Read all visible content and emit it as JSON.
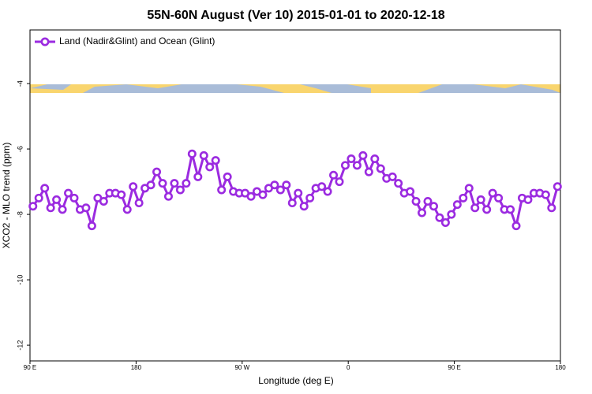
{
  "chart_data": {
    "type": "line",
    "title": "55N-60N August (Ver 10)   2015-01-01 to 2020-12-18",
    "xlabel": "Longitude (deg E)",
    "ylabel": "XCO2 - MLO trend (ppm)",
    "x": [
      92.5,
      97.5,
      102.5,
      107.5,
      112.5,
      117.5,
      122.5,
      127.5,
      132.5,
      137.5,
      142.5,
      147.5,
      152.5,
      157.5,
      162.5,
      167.5,
      172.5,
      177.5,
      182.5,
      187.5,
      192.5,
      197.5,
      202.5,
      207.5,
      212.5,
      217.5,
      222.5,
      227.5,
      232.5,
      237.5,
      242.5,
      247.5,
      252.5,
      257.5,
      262.5,
      267.5,
      272.5,
      277.5,
      282.5,
      287.5,
      292.5,
      297.5,
      302.5,
      307.5,
      312.5,
      317.5,
      322.5,
      327.5,
      332.5,
      337.5,
      342.5,
      347.5,
      352.5,
      357.5,
      362.5,
      367.5,
      372.5,
      377.5,
      382.5,
      387.5,
      392.5,
      397.5,
      402.5,
      407.5,
      412.5,
      417.5,
      422.5,
      427.5,
      432.5,
      437.5,
      442.5,
      447.5,
      452.5,
      457.5,
      462.5,
      467.5,
      472.5,
      477.5,
      482.5,
      487.5,
      492.5,
      497.5,
      502.5,
      507.5,
      512.5,
      517.5,
      522.5,
      527.5,
      532.5,
      537.5
    ],
    "series": [
      {
        "name": "Land (Nadir&Glint) and Ocean (Glint)",
        "color": "#9b2be0",
        "values": [
          -7.75,
          -7.5,
          -7.2,
          -7.8,
          -7.55,
          -7.85,
          -7.35,
          -7.5,
          -7.85,
          -7.8,
          -8.35,
          -7.5,
          -7.6,
          -7.35,
          -7.35,
          -7.4,
          -7.85,
          -7.15,
          -7.65,
          -7.2,
          -7.1,
          -6.7,
          -7.05,
          -7.45,
          -7.05,
          -7.25,
          -7.05,
          -6.15,
          -6.85,
          -6.2,
          -6.55,
          -6.35,
          -7.25,
          -6.85,
          -7.3,
          -7.35,
          -7.35,
          -7.45,
          -7.3,
          -7.4,
          -7.2,
          -7.1,
          -7.25,
          -7.1,
          -7.65,
          -7.35,
          -7.75,
          -7.5,
          -7.2,
          -7.15,
          -7.3,
          -6.8,
          -7.0,
          -6.5,
          -6.3,
          -6.5,
          -6.2,
          -6.7,
          -6.3,
          -6.6,
          -6.9,
          -6.85,
          -7.05,
          -7.35,
          -7.3,
          -7.6,
          -7.95,
          -7.6,
          -7.75,
          -8.1,
          -8.25,
          -8.0,
          -7.7,
          -7.5,
          -7.2,
          -7.8,
          -7.55,
          -7.85,
          -7.35,
          -7.5,
          -7.85,
          -7.85,
          -8.35,
          -7.5,
          -7.55,
          -7.35,
          -7.35,
          -7.4,
          -7.8,
          -7.15
        ]
      }
    ],
    "xlim": [
      90,
      540
    ],
    "xticks": [
      {
        "value": 90,
        "label": "90 E"
      },
      {
        "value": 180,
        "label": "180"
      },
      {
        "value": 270,
        "label": "90 W"
      },
      {
        "value": 360,
        "label": "0"
      },
      {
        "value": 450,
        "label": "90 E"
      },
      {
        "value": 540,
        "label": "180"
      }
    ],
    "ylim": [
      -12.48,
      -2.36
    ],
    "yticks": [
      -4,
      -6,
      -8,
      -10,
      -12
    ],
    "legend": "top-left"
  }
}
